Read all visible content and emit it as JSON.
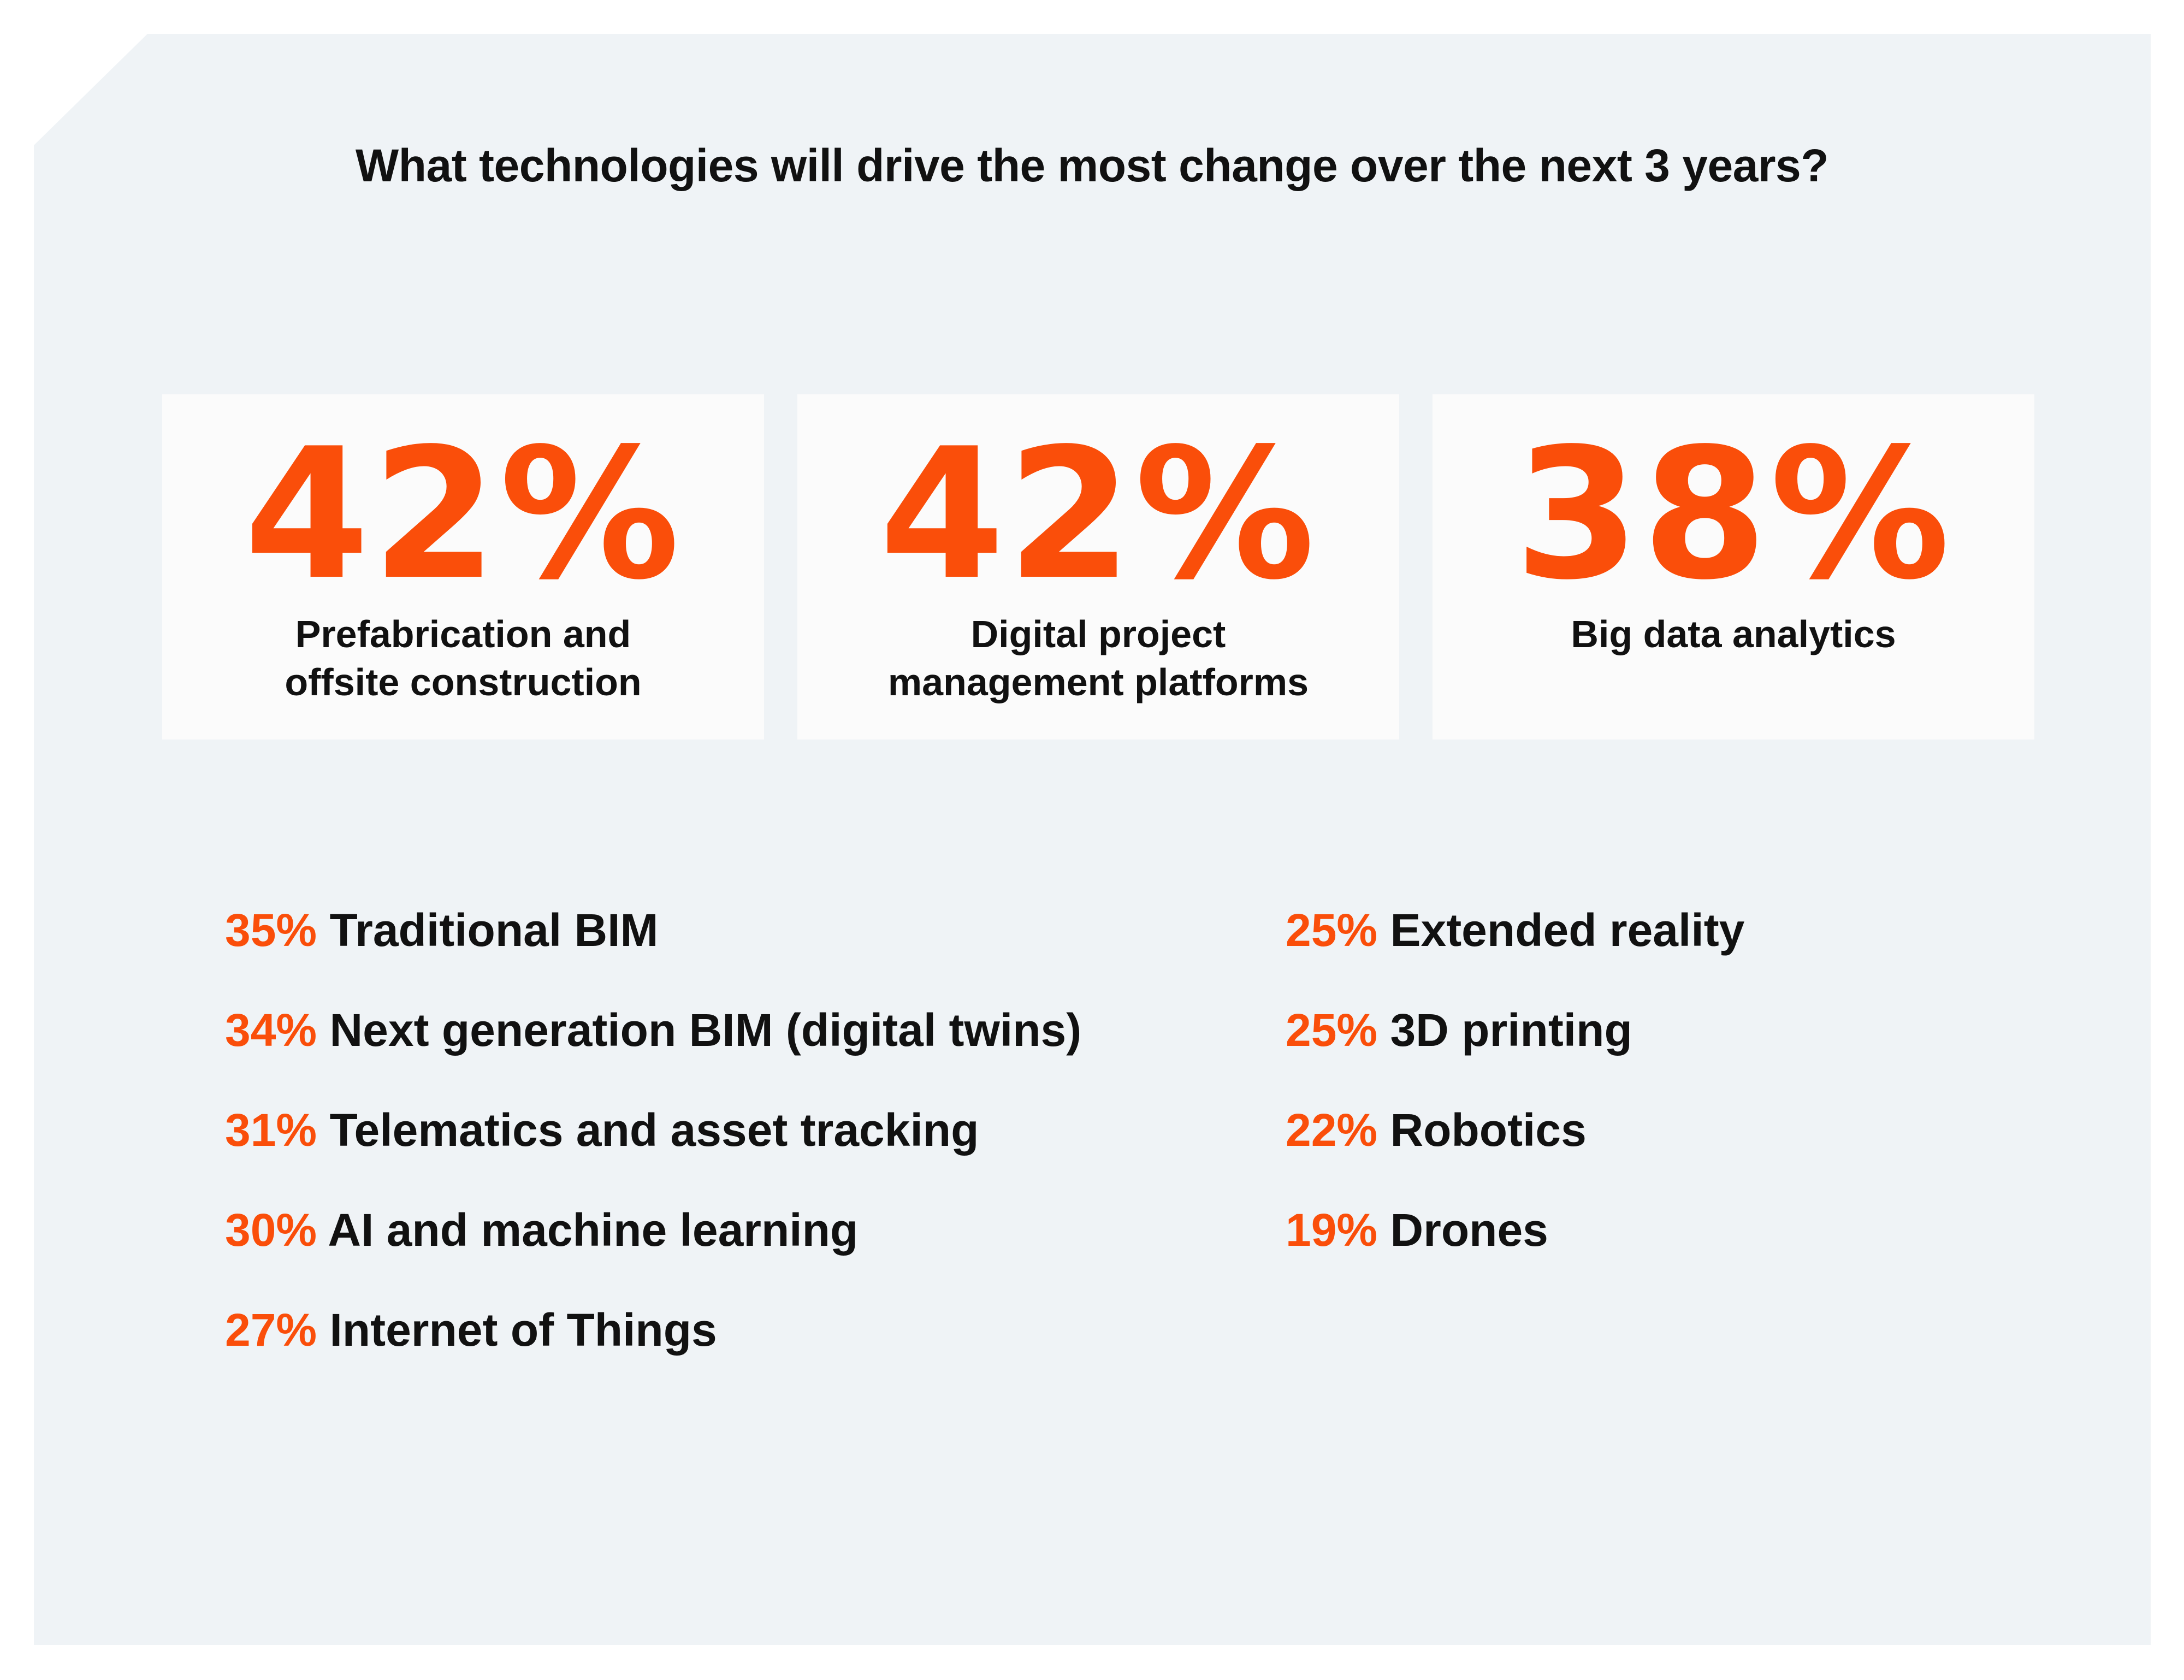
{
  "title": "What technologies will drive the most change over the next 3 years?",
  "colors": {
    "accent": "#fa4e0a",
    "panel_background": "#eff3f6",
    "card_background": "#fbfbfb",
    "text": "#111111"
  },
  "chart_data": {
    "type": "table",
    "title": "What technologies will drive the most change over the next 3 years?",
    "unit": "%",
    "highlights": [
      {
        "category": "Prefabrication and offsite construction",
        "display_label": "Prefabrication and\noffsite construction",
        "value": 42,
        "value_label": "42%"
      },
      {
        "category": "Digital project management platforms",
        "display_label": "Digital project\nmanagement platforms",
        "value": 42,
        "value_label": "42%"
      },
      {
        "category": "Big data analytics",
        "display_label": "Big data analytics",
        "value": 38,
        "value_label": "38%"
      }
    ],
    "list_left": [
      {
        "category": "Traditional BIM",
        "value": 35,
        "value_label": "35%"
      },
      {
        "category": "Next generation BIM (digital twins)",
        "value": 34,
        "value_label": "34%"
      },
      {
        "category": "Telematics and asset tracking",
        "value": 31,
        "value_label": "31%"
      },
      {
        "category": "AI and machine learning",
        "value": 30,
        "value_label": "30%"
      },
      {
        "category": "Internet of Things",
        "value": 27,
        "value_label": "27%"
      }
    ],
    "list_right": [
      {
        "category": "Extended reality",
        "value": 25,
        "value_label": "25%"
      },
      {
        "category": "3D printing",
        "value": 25,
        "value_label": "25%"
      },
      {
        "category": "Robotics",
        "value": 22,
        "value_label": "22%"
      },
      {
        "category": "Drones",
        "value": 19,
        "value_label": "19%"
      }
    ]
  }
}
